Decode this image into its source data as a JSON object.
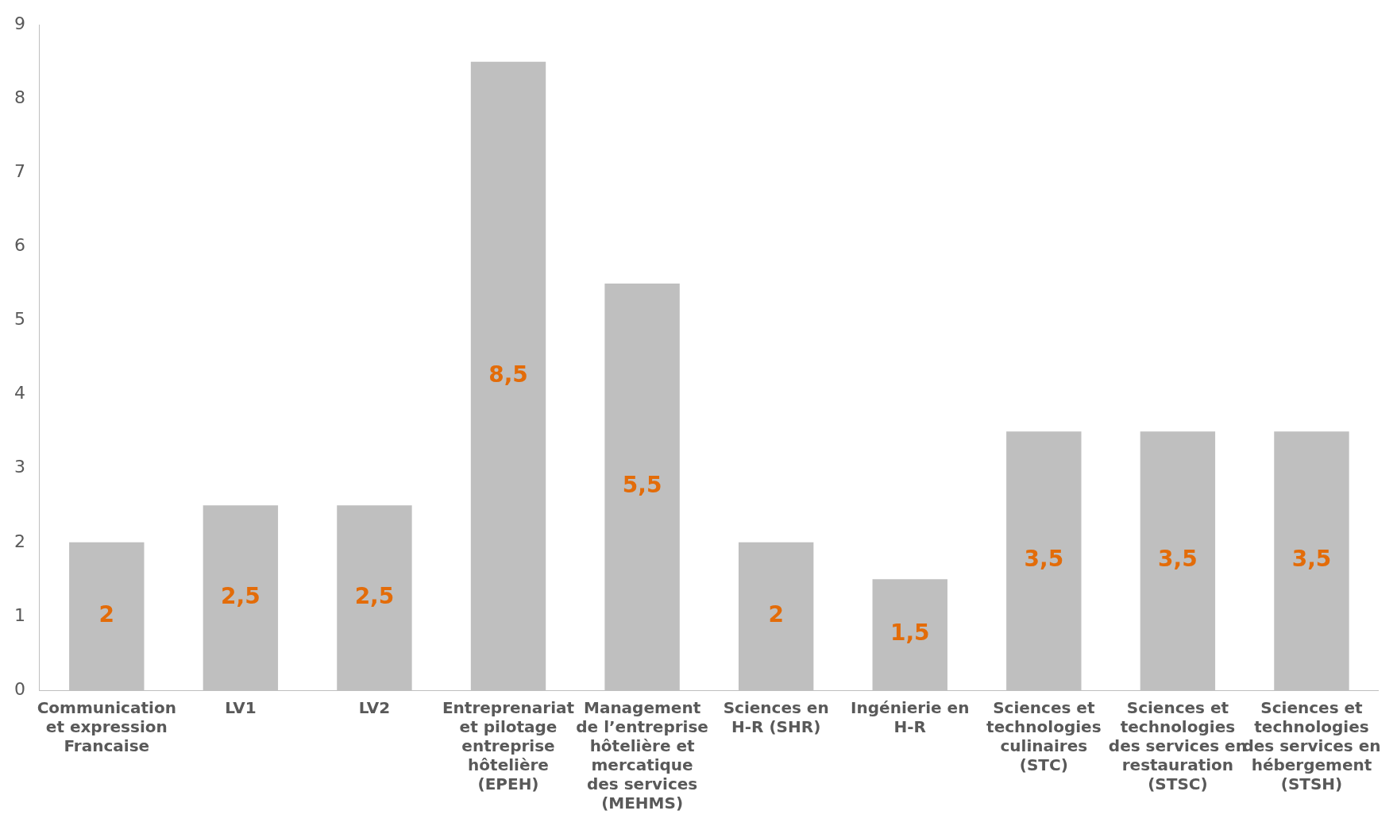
{
  "chart_data": {
    "type": "bar",
    "categories": [
      "Communication et expression Francaise",
      "LV1",
      "LV2",
      "Entreprenariat et pilotage entreprise hôtelière (EPEH)",
      "Management de l’entreprise hôtelière et mercatique des services (MEHMS)",
      "Sciences en H-R (SHR)",
      "Ingénierie en H-R",
      "Sciences et technologies culinaires (STC)",
      "Sciences et technologies des services en restauration (STSC)",
      "Sciences et technologies des services en hébergement (STSH)"
    ],
    "values": [
      2,
      2.5,
      2.5,
      8.5,
      5.5,
      2,
      1.5,
      3.5,
      3.5,
      3.5
    ],
    "value_labels": [
      "2",
      "2,5",
      "2,5",
      "8,5",
      "5,5",
      "2",
      "1,5",
      "3,5",
      "3,5",
      "3,5"
    ],
    "color": "#bfbfbf",
    "ylim": [
      0,
      9
    ],
    "yticks": [
      0,
      1,
      2,
      3,
      4,
      5,
      6,
      7,
      8,
      9
    ],
    "grid": false,
    "legend": false
  }
}
